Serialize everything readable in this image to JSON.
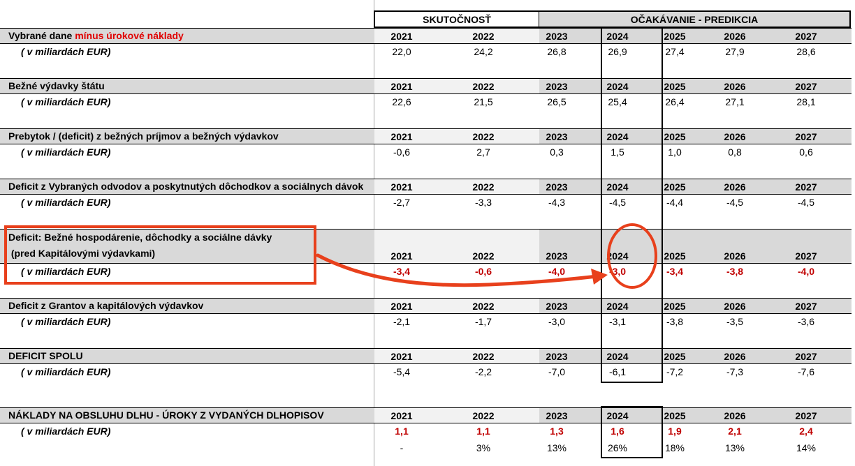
{
  "group_headers": {
    "actual": "SKUTOČNOSŤ",
    "prediction": "OČAKÁVANIE - PREDIKCIA"
  },
  "years": [
    "2021",
    "2022",
    "2023",
    "2024",
    "2025",
    "2026",
    "2027"
  ],
  "unit_label": "( v miliardách EUR)",
  "blocks": [
    {
      "title_parts": [
        "Vybrané dane ",
        "mínus úrokové náklady"
      ],
      "values": [
        "22,0",
        "24,2",
        "26,8",
        "26,9",
        "27,4",
        "27,9",
        "28,6"
      ]
    },
    {
      "title": "Bežné výdavky štátu",
      "values": [
        "22,6",
        "21,5",
        "26,5",
        "25,4",
        "26,4",
        "27,1",
        "28,1"
      ]
    },
    {
      "title": "Prebytok / (deficit) z bežných príjmov a bežných výdavkov",
      "values": [
        "-0,6",
        "2,7",
        "0,3",
        "1,5",
        "1,0",
        "0,8",
        "0,6"
      ]
    },
    {
      "title": "Deficit z Vybraných odvodov a poskytnutých dôchodkov a sociálnych dávok",
      "values": [
        "-2,7",
        "-3,3",
        "-4,3",
        "-4,5",
        "-4,4",
        "-4,5",
        "-4,5"
      ]
    },
    {
      "title_line1": "Deficit: Bežné hospodárenie, dôchodky a sociálne dávky",
      "title_line2": " (pred Kapitálovými výdavkami)",
      "values": [
        "-3,4",
        "-0,6",
        "-4,0",
        "-3,0",
        "-3,4",
        "-3,8",
        "-4,0"
      ],
      "highlight": true
    },
    {
      "title": "Deficit z Grantov a kapitálových výdavkov",
      "values": [
        "-2,1",
        "-1,7",
        "-3,0",
        "-3,1",
        "-3,8",
        "-3,5",
        "-3,6"
      ]
    },
    {
      "title": "DEFICIT SPOLU",
      "values": [
        "-5,4",
        "-2,2",
        "-7,0",
        "-6,1",
        "-7,2",
        "-7,3",
        "-7,6"
      ]
    },
    {
      "title": "NÁKLADY NA OBSLUHU DLHU - ÚROKY Z VYDANÝCH DLHOPISOV",
      "values": [
        "1,1",
        "1,1",
        "1,3",
        "1,6",
        "1,9",
        "2,1",
        "2,4"
      ],
      "growth": [
        "-",
        "3%",
        "13%",
        "26%",
        "18%",
        "13%",
        "14%"
      ]
    }
  ],
  "colors": {
    "header_gray": "#d9d9d9",
    "light_gray": "#f2f2f2",
    "red_text": "#c00000",
    "annotation_red": "#e8401c"
  }
}
